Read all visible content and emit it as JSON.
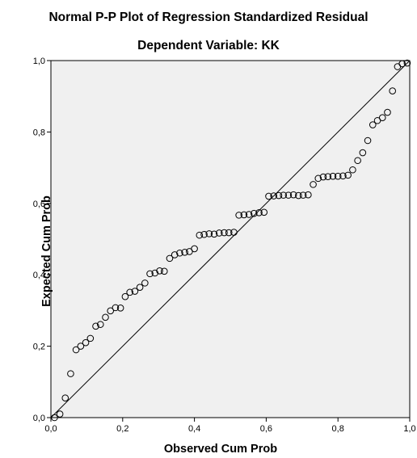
{
  "chart_data": {
    "type": "scatter",
    "title": "Normal P-P Plot of Regression Standardized Residual",
    "subtitle": "Dependent Variable: KK",
    "xlabel": "Observed Cum Prob",
    "ylabel": "Expected Cum Prob",
    "xlim": [
      0,
      1
    ],
    "ylim": [
      0,
      1
    ],
    "x_ticks": [
      "0,0",
      "0,2",
      "0,4",
      "0,6",
      "0,8",
      "1,0"
    ],
    "y_ticks": [
      "0,0",
      "0,2",
      "0,4",
      "0,6",
      "0,8",
      "1,0"
    ],
    "grid": false,
    "legend": "none",
    "reference_line": [
      [
        0,
        0
      ],
      [
        1,
        1
      ]
    ],
    "points": {
      "x": [
        0.01,
        0.025,
        0.04,
        0.055,
        0.07,
        0.083,
        0.097,
        0.11,
        0.125,
        0.138,
        0.152,
        0.166,
        0.18,
        0.194,
        0.207,
        0.22,
        0.234,
        0.248,
        0.262,
        0.276,
        0.29,
        0.303,
        0.316,
        0.331,
        0.345,
        0.359,
        0.373,
        0.386,
        0.4,
        0.414,
        0.427,
        0.441,
        0.455,
        0.469,
        0.483,
        0.496,
        0.51,
        0.524,
        0.538,
        0.552,
        0.566,
        0.58,
        0.594,
        0.607,
        0.621,
        0.635,
        0.648,
        0.662,
        0.676,
        0.69,
        0.703,
        0.717,
        0.731,
        0.745,
        0.759,
        0.772,
        0.786,
        0.8,
        0.814,
        0.828,
        0.841,
        0.855,
        0.869,
        0.883,
        0.897,
        0.91,
        0.924,
        0.938,
        0.952,
        0.966,
        0.979,
        0.993
      ],
      "y": [
        0.0,
        0.01,
        0.055,
        0.123,
        0.19,
        0.2,
        0.21,
        0.222,
        0.256,
        0.261,
        0.281,
        0.299,
        0.308,
        0.307,
        0.339,
        0.351,
        0.354,
        0.365,
        0.377,
        0.403,
        0.405,
        0.411,
        0.41,
        0.446,
        0.456,
        0.461,
        0.463,
        0.465,
        0.473,
        0.511,
        0.513,
        0.515,
        0.514,
        0.517,
        0.518,
        0.518,
        0.519,
        0.567,
        0.568,
        0.569,
        0.572,
        0.574,
        0.575,
        0.62,
        0.621,
        0.622,
        0.623,
        0.623,
        0.624,
        0.622,
        0.623,
        0.624,
        0.653,
        0.67,
        0.674,
        0.675,
        0.676,
        0.676,
        0.677,
        0.679,
        0.694,
        0.72,
        0.742,
        0.776,
        0.82,
        0.832,
        0.84,
        0.855,
        0.915,
        0.983,
        0.991,
        0.993
      ]
    }
  }
}
